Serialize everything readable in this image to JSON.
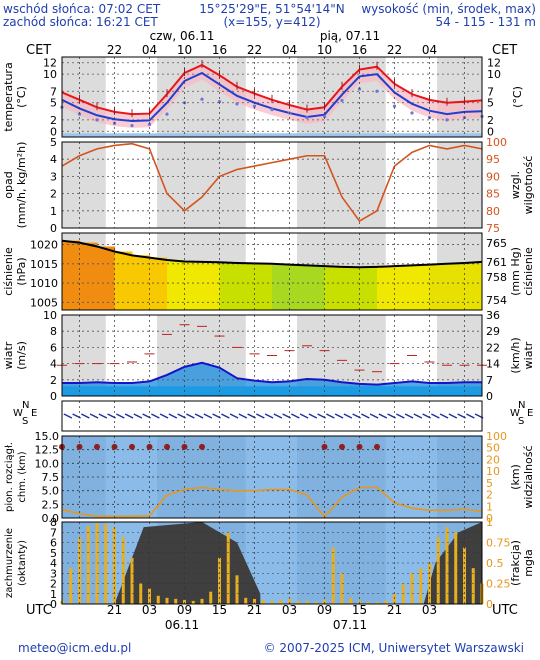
{
  "header": {
    "sunrise": "wschód słońca: 07:02 CET",
    "sunset": "zachód słońca: 16:21 CET",
    "coords": "15°25'29\"E, 51°54'14\"N",
    "grid": "(x=155,  y=412)",
    "elev_label": "wysokość (min, środek, max)",
    "elev_value": "54 - 115 - 131 m"
  },
  "footer": {
    "email": "meteo@icm.edu.pl",
    "copyright": "© 2007-2025 ICM, Uniwersytet Warszawski"
  },
  "time_axis": {
    "top_unit": "CET",
    "bottom_unit": "UTC",
    "top_hours": [
      "22",
      "04",
      "10",
      "16",
      "22",
      "04",
      "10",
      "16",
      "22",
      "04"
    ],
    "bottom_hours": [
      "21",
      "03",
      "09",
      "15",
      "21",
      "03",
      "09",
      "15",
      "21",
      "03"
    ],
    "day_labels_top": [
      "czw, 06.11",
      "pią, 07.11"
    ],
    "day_labels_bottom": [
      "06.11",
      "07.11"
    ]
  },
  "colors": {
    "frame": "#000000",
    "panel_bg": "#ffffff",
    "band_blue": "#9dc6ee",
    "temp_red": "#e8161c",
    "temp_blue": "#1f3fd0",
    "dew_point": "#6c78d8",
    "humidity": "#d4541c",
    "precip_axis": "#000000",
    "humidity_axis": "#d4541c",
    "wind_gust_blue": "#1414c8",
    "wind_red": "#c02020",
    "cloud_bar": "#e8b020",
    "fog_fill": "#3f3f3f",
    "visibility_orange": "#e8961c"
  },
  "chart_data": [
    {
      "type": "line",
      "panel": "temperature",
      "ylabel_left": "temperatura (°C)",
      "ylabel_right": "(°C)",
      "ylim": [
        -1,
        13
      ],
      "yticks": [
        0,
        2,
        5,
        7,
        10,
        12
      ],
      "x_hours_from_start": [
        0,
        3,
        6,
        9,
        12,
        15,
        18,
        21,
        24,
        27,
        30,
        33,
        36,
        39,
        42,
        45,
        48,
        51,
        54,
        57,
        60,
        63,
        66,
        69,
        72
      ],
      "series": [
        {
          "values": [
            6.8,
            5.5,
            4.2,
            3.4,
            3.0,
            3.1,
            6.5,
            10.2,
            11.6,
            9.8,
            7.8,
            6.6,
            5.5,
            4.6,
            3.8,
            4.2,
            7.8,
            10.8,
            11.3,
            8.3,
            6.5,
            5.5,
            5.0,
            5.2,
            5.4
          ]
        },
        {
          "values": [
            5.5,
            4.0,
            2.8,
            2.1,
            1.8,
            1.9,
            5.0,
            8.8,
            10.2,
            8.2,
            6.2,
            5.0,
            4.0,
            3.2,
            2.5,
            2.9,
            6.4,
            9.6,
            10.0,
            6.8,
            4.8,
            3.6,
            3.0,
            3.4,
            3.5
          ]
        },
        {
          "values": [
            4.2,
            3.0,
            2.0,
            1.4,
            1.0,
            1.2,
            3.0,
            5.0,
            5.6,
            5.2,
            4.8,
            4.4,
            3.8,
            3.2,
            2.4,
            2.6,
            5.4,
            7.4,
            7.0,
            4.4,
            3.2,
            2.4,
            2.0,
            2.4,
            2.6
          ]
        }
      ]
    },
    {
      "type": "line",
      "panel": "precipitation_humidity",
      "ylabel_left": "opad (mm/h, kg/m²h)",
      "ylabel_right": "wilgotność wzgl. (%)",
      "ylim_left": [
        0,
        5
      ],
      "yticks_left": [
        0,
        1,
        2,
        3,
        4,
        5
      ],
      "ylim_right": [
        75,
        100
      ],
      "yticks_right": [
        75,
        80,
        85,
        90,
        95,
        100
      ],
      "series": [
        {
          "values": [
            93,
            96,
            98,
            99,
            99.5,
            98,
            85,
            80,
            84,
            90,
            92,
            93,
            94,
            95,
            96,
            96,
            84,
            77,
            80,
            93,
            97,
            99,
            98,
            99,
            98
          ]
        }
      ]
    },
    {
      "type": "line",
      "panel": "pressure",
      "ylabel_left": "ciśnienie (hPa)",
      "ylabel_right": "(mm Hg) ciśnienie",
      "ylim_left": [
        1003,
        1023
      ],
      "yticks_left": [
        1005,
        1010,
        1015,
        1020
      ],
      "yticks_right": [
        754,
        758,
        761,
        765
      ],
      "series": [
        {
          "values": [
            1021,
            1020.5,
            1019.5,
            1018.2,
            1017.2,
            1016.6,
            1016.0,
            1015.6,
            1015.5,
            1015.4,
            1015.2,
            1015.1,
            1015.0,
            1014.8,
            1014.6,
            1014.4,
            1014.2,
            1014.1,
            1014.2,
            1014.4,
            1014.6,
            1014.8,
            1015.0,
            1015.2,
            1015.5
          ]
        }
      ]
    },
    {
      "type": "line",
      "panel": "wind",
      "ylabel_left": "wiatr (m/s)",
      "ylabel_right": "(km/h) wiatr",
      "ylim": [
        0,
        10
      ],
      "yticks_left": [
        0,
        2,
        4,
        6,
        8,
        10
      ],
      "yticks_right": [
        0,
        7,
        14,
        22,
        29,
        36
      ],
      "series": [
        {
          "values": [
            1.6,
            1.6,
            1.7,
            1.6,
            1.6,
            1.8,
            2.6,
            3.6,
            4.1,
            3.5,
            2.2,
            1.9,
            1.7,
            1.8,
            2.1,
            2.0,
            1.7,
            1.5,
            1.4,
            1.6,
            1.8,
            1.6,
            1.6,
            1.7,
            1.7
          ]
        },
        {
          "values": [
            3.8,
            4.0,
            4.0,
            4.0,
            4.2,
            5.2,
            7.6,
            8.8,
            8.6,
            7.4,
            6.0,
            5.2,
            5.0,
            5.6,
            6.2,
            5.6,
            4.4,
            3.2,
            3.0,
            4.0,
            5.0,
            4.2,
            3.8,
            3.8,
            3.8
          ]
        }
      ]
    },
    {
      "type": "line",
      "panel": "cloud_base_visibility",
      "ylabel_left": "pion. rozciągł. chm. (km)",
      "ylabel_right": "(km) widzialność",
      "ylim_left": [
        0,
        15
      ],
      "yticks_left": [
        0.0,
        2.5,
        5.0,
        7.5,
        10.0,
        12.5,
        15.0
      ],
      "ylim_right": [
        0,
        100
      ],
      "yticks_right": [
        0,
        1,
        2,
        5,
        10,
        20,
        50,
        100
      ],
      "series": [
        {
          "values": [
            1.5,
            0.8,
            0.3,
            0.3,
            0.3,
            0.4,
            4.2,
            5.2,
            5.6,
            5.2,
            5.0,
            5.0,
            5.2,
            5.2,
            4.2,
            0.2,
            3.8,
            5.6,
            5.6,
            2.8,
            1.8,
            1.4,
            1.4,
            1.6,
            1.2
          ]
        }
      ]
    },
    {
      "type": "bar",
      "panel": "cloud_cover_fog",
      "ylabel_left": "zachmurzenie (oktanty)",
      "ylabel_right": "(frakcja) mgła",
      "ylim_left": [
        0,
        8
      ],
      "yticks_left": [
        0,
        1,
        2,
        3,
        4,
        5,
        6,
        7,
        8
      ],
      "ylim_right": [
        0,
        1
      ],
      "yticks_right": [
        0,
        0.25,
        0.5,
        0.75,
        1
      ],
      "values": [
        0.3,
        3.5,
        6.5,
        7.6,
        7.9,
        7.8,
        7.5,
        6.5,
        4.5,
        2.0,
        1.5,
        0.8,
        0.6,
        0.5,
        0.4,
        0.3,
        0.5,
        1.2,
        4.5,
        7.0,
        2.8,
        0.6,
        0.5,
        0.4,
        0.3,
        0.4,
        0.5,
        0.3,
        0.3,
        0.2,
        0.4,
        5.5,
        3.0,
        0.6,
        0.3,
        0.2,
        0.2,
        0.3,
        1.0,
        2.0,
        3.0,
        3.5,
        4.0,
        6.5,
        7.5,
        7.0,
        5.5,
        3.5,
        2.0
      ]
    }
  ]
}
